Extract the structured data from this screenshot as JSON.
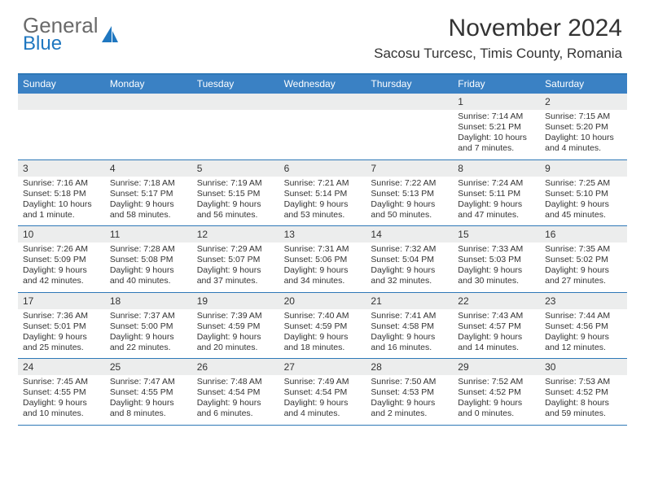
{
  "brand": {
    "word1": "General",
    "word2": "Blue"
  },
  "colors": {
    "header_bg": "#3a81c4",
    "border": "#2e78b7",
    "band_bg": "#eceded",
    "text": "#333333",
    "logo_gray": "#6a6a6a",
    "logo_blue": "#1f77c0"
  },
  "title": "November 2024",
  "location": "Sacosu Turcesc, Timis County, Romania",
  "dow": [
    "Sunday",
    "Monday",
    "Tuesday",
    "Wednesday",
    "Thursday",
    "Friday",
    "Saturday"
  ],
  "weeks": [
    [
      {
        "n": "",
        "lines": []
      },
      {
        "n": "",
        "lines": []
      },
      {
        "n": "",
        "lines": []
      },
      {
        "n": "",
        "lines": []
      },
      {
        "n": "",
        "lines": []
      },
      {
        "n": "1",
        "lines": [
          "Sunrise: 7:14 AM",
          "Sunset: 5:21 PM",
          "Daylight: 10 hours and 7 minutes."
        ]
      },
      {
        "n": "2",
        "lines": [
          "Sunrise: 7:15 AM",
          "Sunset: 5:20 PM",
          "Daylight: 10 hours and 4 minutes."
        ]
      }
    ],
    [
      {
        "n": "3",
        "lines": [
          "Sunrise: 7:16 AM",
          "Sunset: 5:18 PM",
          "Daylight: 10 hours and 1 minute."
        ]
      },
      {
        "n": "4",
        "lines": [
          "Sunrise: 7:18 AM",
          "Sunset: 5:17 PM",
          "Daylight: 9 hours and 58 minutes."
        ]
      },
      {
        "n": "5",
        "lines": [
          "Sunrise: 7:19 AM",
          "Sunset: 5:15 PM",
          "Daylight: 9 hours and 56 minutes."
        ]
      },
      {
        "n": "6",
        "lines": [
          "Sunrise: 7:21 AM",
          "Sunset: 5:14 PM",
          "Daylight: 9 hours and 53 minutes."
        ]
      },
      {
        "n": "7",
        "lines": [
          "Sunrise: 7:22 AM",
          "Sunset: 5:13 PM",
          "Daylight: 9 hours and 50 minutes."
        ]
      },
      {
        "n": "8",
        "lines": [
          "Sunrise: 7:24 AM",
          "Sunset: 5:11 PM",
          "Daylight: 9 hours and 47 minutes."
        ]
      },
      {
        "n": "9",
        "lines": [
          "Sunrise: 7:25 AM",
          "Sunset: 5:10 PM",
          "Daylight: 9 hours and 45 minutes."
        ]
      }
    ],
    [
      {
        "n": "10",
        "lines": [
          "Sunrise: 7:26 AM",
          "Sunset: 5:09 PM",
          "Daylight: 9 hours and 42 minutes."
        ]
      },
      {
        "n": "11",
        "lines": [
          "Sunrise: 7:28 AM",
          "Sunset: 5:08 PM",
          "Daylight: 9 hours and 40 minutes."
        ]
      },
      {
        "n": "12",
        "lines": [
          "Sunrise: 7:29 AM",
          "Sunset: 5:07 PM",
          "Daylight: 9 hours and 37 minutes."
        ]
      },
      {
        "n": "13",
        "lines": [
          "Sunrise: 7:31 AM",
          "Sunset: 5:06 PM",
          "Daylight: 9 hours and 34 minutes."
        ]
      },
      {
        "n": "14",
        "lines": [
          "Sunrise: 7:32 AM",
          "Sunset: 5:04 PM",
          "Daylight: 9 hours and 32 minutes."
        ]
      },
      {
        "n": "15",
        "lines": [
          "Sunrise: 7:33 AM",
          "Sunset: 5:03 PM",
          "Daylight: 9 hours and 30 minutes."
        ]
      },
      {
        "n": "16",
        "lines": [
          "Sunrise: 7:35 AM",
          "Sunset: 5:02 PM",
          "Daylight: 9 hours and 27 minutes."
        ]
      }
    ],
    [
      {
        "n": "17",
        "lines": [
          "Sunrise: 7:36 AM",
          "Sunset: 5:01 PM",
          "Daylight: 9 hours and 25 minutes."
        ]
      },
      {
        "n": "18",
        "lines": [
          "Sunrise: 7:37 AM",
          "Sunset: 5:00 PM",
          "Daylight: 9 hours and 22 minutes."
        ]
      },
      {
        "n": "19",
        "lines": [
          "Sunrise: 7:39 AM",
          "Sunset: 4:59 PM",
          "Daylight: 9 hours and 20 minutes."
        ]
      },
      {
        "n": "20",
        "lines": [
          "Sunrise: 7:40 AM",
          "Sunset: 4:59 PM",
          "Daylight: 9 hours and 18 minutes."
        ]
      },
      {
        "n": "21",
        "lines": [
          "Sunrise: 7:41 AM",
          "Sunset: 4:58 PM",
          "Daylight: 9 hours and 16 minutes."
        ]
      },
      {
        "n": "22",
        "lines": [
          "Sunrise: 7:43 AM",
          "Sunset: 4:57 PM",
          "Daylight: 9 hours and 14 minutes."
        ]
      },
      {
        "n": "23",
        "lines": [
          "Sunrise: 7:44 AM",
          "Sunset: 4:56 PM",
          "Daylight: 9 hours and 12 minutes."
        ]
      }
    ],
    [
      {
        "n": "24",
        "lines": [
          "Sunrise: 7:45 AM",
          "Sunset: 4:55 PM",
          "Daylight: 9 hours and 10 minutes."
        ]
      },
      {
        "n": "25",
        "lines": [
          "Sunrise: 7:47 AM",
          "Sunset: 4:55 PM",
          "Daylight: 9 hours and 8 minutes."
        ]
      },
      {
        "n": "26",
        "lines": [
          "Sunrise: 7:48 AM",
          "Sunset: 4:54 PM",
          "Daylight: 9 hours and 6 minutes."
        ]
      },
      {
        "n": "27",
        "lines": [
          "Sunrise: 7:49 AM",
          "Sunset: 4:54 PM",
          "Daylight: 9 hours and 4 minutes."
        ]
      },
      {
        "n": "28",
        "lines": [
          "Sunrise: 7:50 AM",
          "Sunset: 4:53 PM",
          "Daylight: 9 hours and 2 minutes."
        ]
      },
      {
        "n": "29",
        "lines": [
          "Sunrise: 7:52 AM",
          "Sunset: 4:52 PM",
          "Daylight: 9 hours and 0 minutes."
        ]
      },
      {
        "n": "30",
        "lines": [
          "Sunrise: 7:53 AM",
          "Sunset: 4:52 PM",
          "Daylight: 8 hours and 59 minutes."
        ]
      }
    ]
  ]
}
